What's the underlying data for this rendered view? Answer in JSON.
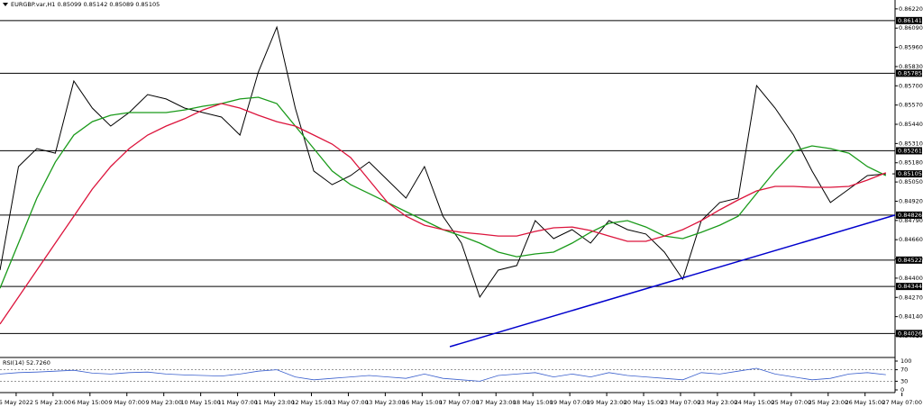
{
  "chart_data": {
    "type": "line",
    "title": "EURGBP.var,H1 0.85099 0.85142 0.85089 0.85105",
    "xlim": [
      0,
      388
    ],
    "xticks": [
      {
        "value": 7,
        "label": "5 May 2022"
      },
      {
        "value": 23,
        "label": "5 May 23:00"
      },
      {
        "value": 39,
        "label": "6 May 15:00"
      },
      {
        "value": 55,
        "label": "9 May 07:00"
      },
      {
        "value": 71,
        "label": "9 May 23:00"
      },
      {
        "value": 87,
        "label": "10 May 15:00"
      },
      {
        "value": 103,
        "label": "11 May 07:00"
      },
      {
        "value": 119,
        "label": "11 May 23:00"
      },
      {
        "value": 135,
        "label": "12 May 15:00"
      },
      {
        "value": 151,
        "label": "13 May 07:00"
      },
      {
        "value": 167,
        "label": "13 May 23:00"
      },
      {
        "value": 183,
        "label": "16 May 15:00"
      },
      {
        "value": 199,
        "label": "17 May 07:00"
      },
      {
        "value": 215,
        "label": "17 May 23:00"
      },
      {
        "value": 231,
        "label": "18 May 15:00"
      },
      {
        "value": 247,
        "label": "19 May 07:00"
      },
      {
        "value": 263,
        "label": "19 May 23:00"
      },
      {
        "value": 279,
        "label": "20 May 15:00"
      },
      {
        "value": 295,
        "label": "23 May 07:00"
      },
      {
        "value": 311,
        "label": "23 May 23:00"
      },
      {
        "value": 327,
        "label": "24 May 15:00"
      },
      {
        "value": 343,
        "label": "25 May 07:00"
      },
      {
        "value": 359,
        "label": "25 May 23:00"
      },
      {
        "value": 375,
        "label": "26 May 15:00"
      },
      {
        "value": 391,
        "label": "27 May 07:00"
      }
    ],
    "ylim": [
      0.8387,
      0.8628
    ],
    "yticks": [
      {
        "value": 0.8622,
        "label": "0.86220"
      },
      {
        "value": 0.8609,
        "label": "0.86090"
      },
      {
        "value": 0.8596,
        "label": "0.85960"
      },
      {
        "value": 0.8583,
        "label": "0.85830"
      },
      {
        "value": 0.857,
        "label": "0.85700"
      },
      {
        "value": 0.8557,
        "label": "0.85570"
      },
      {
        "value": 0.8544,
        "label": "0.85440"
      },
      {
        "value": 0.8531,
        "label": "0.85310"
      },
      {
        "value": 0.8518,
        "label": "0.85180"
      },
      {
        "value": 0.8505,
        "label": "0.85050"
      },
      {
        "value": 0.8492,
        "label": "0.84920"
      },
      {
        "value": 0.8479,
        "label": "0.84790"
      },
      {
        "value": 0.8466,
        "label": "0.84660"
      },
      {
        "value": 0.8453,
        "label": "0.84530"
      },
      {
        "value": 0.844,
        "label": "0.84400"
      },
      {
        "value": 0.8427,
        "label": "0.84270"
      },
      {
        "value": 0.8414,
        "label": "0.84140"
      },
      {
        "value": 0.8401,
        "label": "0.84010"
      }
    ],
    "levels": [
      0.86141,
      0.85785,
      0.85261,
      0.84826,
      0.84522,
      0.84344,
      0.84026
    ],
    "current_price": 0.85105,
    "x": [
      0,
      8,
      16,
      24,
      32,
      40,
      48,
      56,
      64,
      72,
      80,
      88,
      96,
      104,
      112,
      120,
      128,
      136,
      144,
      152,
      160,
      168,
      176,
      184,
      192,
      200,
      208,
      216,
      224,
      232,
      240,
      248,
      256,
      264,
      272,
      280,
      288,
      296,
      304,
      312,
      320,
      328,
      336,
      344,
      352,
      360,
      368,
      376,
      384
    ],
    "series": [
      {
        "color": "#000000",
        "values": [
          0.84454,
          0.85154,
          0.85276,
          0.85245,
          0.85732,
          0.8555,
          0.85428,
          0.85519,
          0.85641,
          0.85611,
          0.8555,
          0.85519,
          0.85489,
          0.85367,
          0.85793,
          0.86097,
          0.8555,
          0.85124,
          0.85032,
          0.85093,
          0.85185,
          0.85063,
          0.84941,
          0.85154,
          0.84819,
          0.84637,
          0.84272,
          0.84454,
          0.84485,
          0.84789,
          0.84667,
          0.84728,
          0.84637,
          0.84789,
          0.84728,
          0.84698,
          0.84576,
          0.84393,
          0.84789,
          0.84911,
          0.84941,
          0.85702,
          0.8555,
          0.85367,
          0.85124,
          0.84911,
          0.85002,
          0.85093,
          0.85105
        ]
      },
      {
        "color": "#1a9a1a",
        "values": [
          0.84332,
          0.84637,
          0.84941,
          0.85185,
          0.85367,
          0.85458,
          0.85501,
          0.85519,
          0.85519,
          0.85519,
          0.85537,
          0.85562,
          0.8558,
          0.85611,
          0.85623,
          0.8558,
          0.85428,
          0.85276,
          0.85124,
          0.85032,
          0.84972,
          0.84911,
          0.8485,
          0.84789,
          0.84728,
          0.84685,
          0.84637,
          0.84576,
          0.84545,
          0.84564,
          0.84576,
          0.84637,
          0.8471,
          0.84771,
          0.84789,
          0.84746,
          0.84685,
          0.84667,
          0.8471,
          0.84758,
          0.84819,
          0.84972,
          0.85124,
          0.85258,
          0.85294,
          0.85276,
          0.85245,
          0.85154,
          0.85093
        ]
      },
      {
        "color": "#dc143c",
        "values": [
          0.8409,
          0.84272,
          0.84454,
          0.84637,
          0.84819,
          0.85002,
          0.85154,
          0.85276,
          0.85367,
          0.85428,
          0.85477,
          0.85537,
          0.8558,
          0.8555,
          0.85501,
          0.85458,
          0.85428,
          0.85367,
          0.85306,
          0.85215,
          0.85063,
          0.84911,
          0.84819,
          0.84758,
          0.84728,
          0.8471,
          0.84698,
          0.84685,
          0.84685,
          0.84716,
          0.8474,
          0.84746,
          0.84722,
          0.84685,
          0.84649,
          0.84649,
          0.84685,
          0.84728,
          0.84789,
          0.84862,
          0.84929,
          0.8499,
          0.8502,
          0.8502,
          0.85014,
          0.85014,
          0.8502,
          0.85063,
          0.85112
        ]
      }
    ],
    "trendline": {
      "color": "#0000cd",
      "x": [
        195,
        388
      ],
      "values": [
        0.83937,
        0.84826
      ]
    },
    "rsi": {
      "title": "RSI(14) 52.7260",
      "color": "#3a5fcd",
      "ylim": [
        0,
        100
      ],
      "yticks": [
        100,
        70,
        30,
        0
      ],
      "levels": [
        70,
        30
      ],
      "values": [
        55,
        60,
        62,
        65,
        68,
        58,
        55,
        60,
        62,
        55,
        52,
        50,
        48,
        55,
        65,
        70,
        45,
        35,
        40,
        45,
        50,
        45,
        40,
        55,
        40,
        35,
        30,
        50,
        55,
        60,
        45,
        55,
        45,
        60,
        50,
        45,
        40,
        35,
        60,
        55,
        65,
        75,
        55,
        45,
        35,
        40,
        55,
        60,
        52.726
      ]
    }
  }
}
